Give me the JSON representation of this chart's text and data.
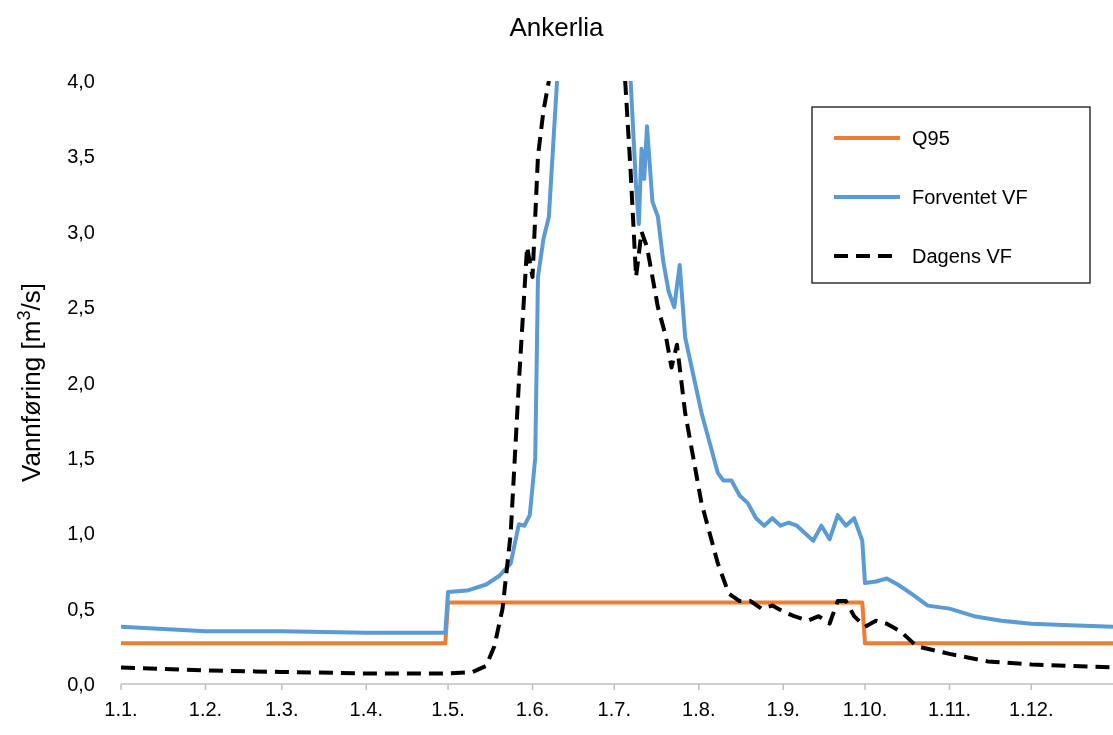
{
  "chart_data": {
    "type": "line",
    "title": "Ankerlia",
    "ylabel": "Vannføring [m$^{3}$/s]",
    "xlim": [
      "--01-01",
      "--12-31"
    ],
    "xticks": [
      {
        "value": "--01-01",
        "label": "1.1."
      },
      {
        "value": "--02-01",
        "label": "1.2."
      },
      {
        "value": "--03-01",
        "label": "1.3."
      },
      {
        "value": "--04-01",
        "label": "1.4."
      },
      {
        "value": "--05-01",
        "label": "1.5."
      },
      {
        "value": "--06-01",
        "label": "1.6."
      },
      {
        "value": "--07-01",
        "label": "1.7."
      },
      {
        "value": "--08-01",
        "label": "1.8."
      },
      {
        "value": "--09-01",
        "label": "1.9."
      },
      {
        "value": "--10-01",
        "label": "1.10."
      },
      {
        "value": "--11-01",
        "label": "1.11."
      },
      {
        "value": "--12-01",
        "label": "1.12."
      }
    ],
    "ylim": [
      0,
      4
    ],
    "yticks": [
      {
        "value": 0,
        "label": "0,0"
      },
      {
        "value": 0.5,
        "label": "0,5"
      },
      {
        "value": 1,
        "label": "1,0"
      },
      {
        "value": 1.5,
        "label": "1,5"
      },
      {
        "value": 2,
        "label": "2,0"
      },
      {
        "value": 2.5,
        "label": "2,5"
      },
      {
        "value": 3,
        "label": "3,0"
      },
      {
        "value": 3.5,
        "label": "3,5"
      },
      {
        "value": 4,
        "label": "4,0"
      }
    ],
    "grid": false,
    "legend": "top right",
    "series": [
      {
        "name": "Q95",
        "color": "#ed7d31",
        "line_style": "solid",
        "x": [
          "--01-01",
          "--04-30",
          "--05-01",
          "--09-30",
          "--10-01",
          "--12-31"
        ],
        "values": [
          0.27,
          0.27,
          0.54,
          0.54,
          0.27,
          0.27
        ]
      },
      {
        "name": "Forventet VF",
        "color": "#5b9bd5",
        "line_style": "solid",
        "x": [
          "--01-01",
          "--02-01",
          "--03-01",
          "--04-01",
          "--04-30",
          "--05-01",
          "--05-08",
          "--05-15",
          "--05-20",
          "--05-24",
          "--05-27",
          "--05-29",
          "--05-31",
          "--06-02",
          "--06-03",
          "--06-05",
          "--06-07",
          "--06-09",
          "--06-10",
          "--06-20",
          "--07-07",
          "--07-09",
          "--07-10",
          "--07-11",
          "--07-12",
          "--07-13",
          "--07-15",
          "--07-17",
          "--07-19",
          "--07-21",
          "--07-23",
          "--07-25",
          "--07-27",
          "--07-30",
          "--08-02",
          "--08-05",
          "--08-08",
          "--08-10",
          "--08-13",
          "--08-16",
          "--08-19",
          "--08-22",
          "--08-25",
          "--08-28",
          "--08-31",
          "--09-03",
          "--09-06",
          "--09-09",
          "--09-12",
          "--09-15",
          "--09-18",
          "--09-21",
          "--09-24",
          "--09-27",
          "--09-30",
          "--10-01",
          "--10-05",
          "--10-09",
          "--10-13",
          "--10-18",
          "--10-24",
          "--11-01",
          "--11-10",
          "--11-20",
          "--12-01",
          "--12-15",
          "--12-31"
        ],
        "values": [
          0.38,
          0.35,
          0.35,
          0.34,
          0.34,
          0.61,
          0.62,
          0.66,
          0.72,
          0.8,
          1.06,
          1.05,
          1.12,
          1.5,
          2.7,
          2.95,
          3.1,
          3.7,
          4.0,
          null,
          4.0,
          3.3,
          3.05,
          3.55,
          3.35,
          3.7,
          3.2,
          3.1,
          2.8,
          2.6,
          2.5,
          2.78,
          2.3,
          2.05,
          1.8,
          1.6,
          1.4,
          1.35,
          1.35,
          1.25,
          1.2,
          1.1,
          1.05,
          1.1,
          1.05,
          1.07,
          1.05,
          1.0,
          0.95,
          1.05,
          0.96,
          1.12,
          1.05,
          1.1,
          0.95,
          0.67,
          0.68,
          0.7,
          0.66,
          0.6,
          0.52,
          0.5,
          0.45,
          0.42,
          0.4,
          0.39,
          0.38
        ]
      },
      {
        "name": "Dagens VF",
        "color": "#000000",
        "line_style": "dashed",
        "x": [
          "--01-01",
          "--02-01",
          "--03-01",
          "--04-01",
          "--05-01",
          "--05-10",
          "--05-15",
          "--05-18",
          "--05-21",
          "--05-24",
          "--05-27",
          "--05-30",
          "--06-01",
          "--06-03",
          "--06-05",
          "--06-07",
          "--06-20",
          "--07-05",
          "--07-07",
          "--07-09",
          "--07-11",
          "--07-13",
          "--07-15",
          "--07-17",
          "--07-20",
          "--07-22",
          "--07-24",
          "--07-27",
          "--07-30",
          "--08-02",
          "--08-05",
          "--08-08",
          "--08-12",
          "--08-16",
          "--08-20",
          "--08-24",
          "--08-28",
          "--09-01",
          "--09-05",
          "--09-10",
          "--09-14",
          "--09-18",
          "--09-21",
          "--09-24",
          "--09-27",
          "--10-01",
          "--10-05",
          "--10-09",
          "--10-14",
          "--10-20",
          "--11-01",
          "--11-15",
          "--12-01",
          "--12-15",
          "--12-31"
        ],
        "values": [
          0.11,
          0.09,
          0.08,
          0.07,
          0.07,
          0.08,
          0.12,
          0.25,
          0.5,
          1.0,
          2.0,
          2.9,
          2.7,
          3.5,
          3.8,
          4.0,
          null,
          4.0,
          3.4,
          2.7,
          3.0,
          2.9,
          2.7,
          2.5,
          2.3,
          2.1,
          2.25,
          1.8,
          1.5,
          1.2,
          1.0,
          0.8,
          0.6,
          0.55,
          0.55,
          0.5,
          0.52,
          0.48,
          0.45,
          0.42,
          0.45,
          0.4,
          0.55,
          0.55,
          0.45,
          0.38,
          0.42,
          0.4,
          0.35,
          0.25,
          0.2,
          0.15,
          0.13,
          0.12,
          0.11
        ]
      }
    ]
  }
}
